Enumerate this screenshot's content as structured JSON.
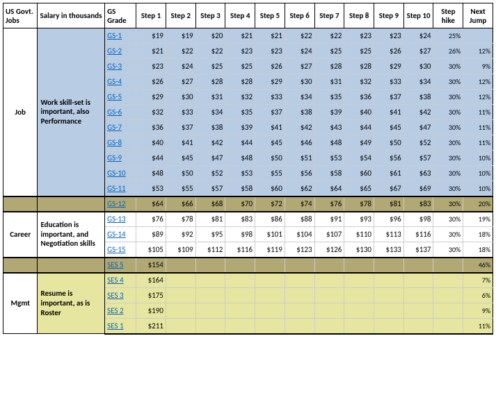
{
  "header": {
    "cat": "US Govt. Jobs",
    "desc": "Salary in thousands",
    "grade": "GS Grade",
    "steps": [
      "Step 1",
      "Step 2",
      "Step 3",
      "Step 4",
      "Step 5",
      "Step 6",
      "Step 7",
      "Step 8",
      "Step 9",
      "Step 10"
    ],
    "hike": "Step hike",
    "jump": "Next Jump"
  },
  "colors": {
    "section_blue": "#b8cce4",
    "section_olive": "#b2a874",
    "section_white": "#ffffff",
    "section_yellow": "#e6e6a0",
    "link": "#0563c1",
    "border_major": "#000000",
    "border_minor": "#cccccc"
  },
  "sections": [
    {
      "cat": "Job",
      "desc": "Work skill-set is important, also Performance",
      "fill": "#b8cce4",
      "rowspan": 11,
      "rows": [
        {
          "grade": "GS-1",
          "steps": [
            "$19",
            "$19",
            "$20",
            "$21",
            "$21",
            "$22",
            "$22",
            "$23",
            "$23",
            "$24"
          ],
          "hike": "25%",
          "jump": ""
        },
        {
          "grade": "GS-2",
          "steps": [
            "$21",
            "$22",
            "$22",
            "$23",
            "$23",
            "$24",
            "$25",
            "$25",
            "$26",
            "$27"
          ],
          "hike": "26%",
          "jump": "12%"
        },
        {
          "grade": "GS-3",
          "steps": [
            "$23",
            "$24",
            "$25",
            "$25",
            "$26",
            "$27",
            "$28",
            "$28",
            "$29",
            "$30"
          ],
          "hike": "30%",
          "jump": "9%"
        },
        {
          "grade": "GS-4",
          "steps": [
            "$26",
            "$27",
            "$28",
            "$28",
            "$29",
            "$30",
            "$31",
            "$32",
            "$33",
            "$34"
          ],
          "hike": "30%",
          "jump": "12%"
        },
        {
          "grade": "GS-5",
          "steps": [
            "$29",
            "$30",
            "$31",
            "$32",
            "$33",
            "$34",
            "$35",
            "$36",
            "$37",
            "$38"
          ],
          "hike": "30%",
          "jump": "12%"
        },
        {
          "grade": "GS-6",
          "steps": [
            "$32",
            "$33",
            "$34",
            "$35",
            "$37",
            "$38",
            "$39",
            "$40",
            "$41",
            "$42"
          ],
          "hike": "30%",
          "jump": "11%"
        },
        {
          "grade": "GS-7",
          "steps": [
            "$36",
            "$37",
            "$38",
            "$39",
            "$41",
            "$42",
            "$43",
            "$44",
            "$45",
            "$47"
          ],
          "hike": "30%",
          "jump": "11%"
        },
        {
          "grade": "GS-8",
          "steps": [
            "$40",
            "$41",
            "$42",
            "$44",
            "$45",
            "$46",
            "$48",
            "$49",
            "$50",
            "$52"
          ],
          "hike": "30%",
          "jump": "11%"
        },
        {
          "grade": "GS-9",
          "steps": [
            "$44",
            "$45",
            "$47",
            "$48",
            "$50",
            "$51",
            "$53",
            "$54",
            "$56",
            "$57"
          ],
          "hike": "30%",
          "jump": "10%"
        },
        {
          "grade": "GS-10",
          "steps": [
            "$48",
            "$50",
            "$52",
            "$53",
            "$55",
            "$56",
            "$58",
            "$60",
            "$61",
            "$63"
          ],
          "hike": "30%",
          "jump": "10%"
        },
        {
          "grade": "GS-11",
          "steps": [
            "$53",
            "$55",
            "$57",
            "$58",
            "$60",
            "$62",
            "$64",
            "$65",
            "$67",
            "$69"
          ],
          "hike": "30%",
          "jump": "10%"
        }
      ]
    },
    {
      "cat": "",
      "desc": "",
      "fill": "#b2a874",
      "rowspan": 1,
      "sep": true,
      "rows": [
        {
          "grade": "GS-12",
          "steps": [
            "$64",
            "$66",
            "$68",
            "$70",
            "$72",
            "$74",
            "$76",
            "$78",
            "$81",
            "$83"
          ],
          "hike": "30%",
          "jump": "20%"
        }
      ]
    },
    {
      "cat": "Career",
      "desc": "Education is important, and Negotiation skills",
      "fill": "#ffffff",
      "rowspan": 3,
      "sep": true,
      "rows": [
        {
          "grade": "GS-13",
          "steps": [
            "$76",
            "$78",
            "$81",
            "$83",
            "$86",
            "$88",
            "$91",
            "$93",
            "$96",
            "$98"
          ],
          "hike": "30%",
          "jump": "19%"
        },
        {
          "grade": "GS-14",
          "steps": [
            "$89",
            "$92",
            "$95",
            "$98",
            "$101",
            "$104",
            "$107",
            "$110",
            "$113",
            "$116"
          ],
          "hike": "30%",
          "jump": "18%"
        },
        {
          "grade": "GS-15",
          "steps": [
            "$105",
            "$109",
            "$112",
            "$116",
            "$119",
            "$123",
            "$126",
            "$130",
            "$133",
            "$137"
          ],
          "hike": "30%",
          "jump": "18%"
        }
      ]
    },
    {
      "cat": "",
      "desc": "",
      "fill": "#b2a874",
      "rowspan": 1,
      "sep": true,
      "rows": [
        {
          "grade": "SES 5",
          "steps": [
            "$154",
            "",
            "",
            "",
            "",
            "",
            "",
            "",
            "",
            ""
          ],
          "hike": "",
          "jump": "46%"
        }
      ]
    },
    {
      "cat": "Mgmt",
      "desc": "Resume is important, as is Roster",
      "fill": "#e6e6a0",
      "rowspan": 4,
      "sep": true,
      "last": true,
      "rows": [
        {
          "grade": "SES 4",
          "steps": [
            "$164",
            "",
            "",
            "",
            "",
            "",
            "",
            "",
            "",
            ""
          ],
          "hike": "",
          "jump": "7%"
        },
        {
          "grade": "SES 3",
          "steps": [
            "$175",
            "",
            "",
            "",
            "",
            "",
            "",
            "",
            "",
            ""
          ],
          "hike": "",
          "jump": "6%"
        },
        {
          "grade": "SES 2",
          "steps": [
            "$190",
            "",
            "",
            "",
            "",
            "",
            "",
            "",
            "",
            ""
          ],
          "hike": "",
          "jump": "9%"
        },
        {
          "grade": "SES 1",
          "steps": [
            "$211",
            "",
            "",
            "",
            "",
            "",
            "",
            "",
            "",
            ""
          ],
          "hike": "",
          "jump": "11%"
        }
      ]
    }
  ]
}
